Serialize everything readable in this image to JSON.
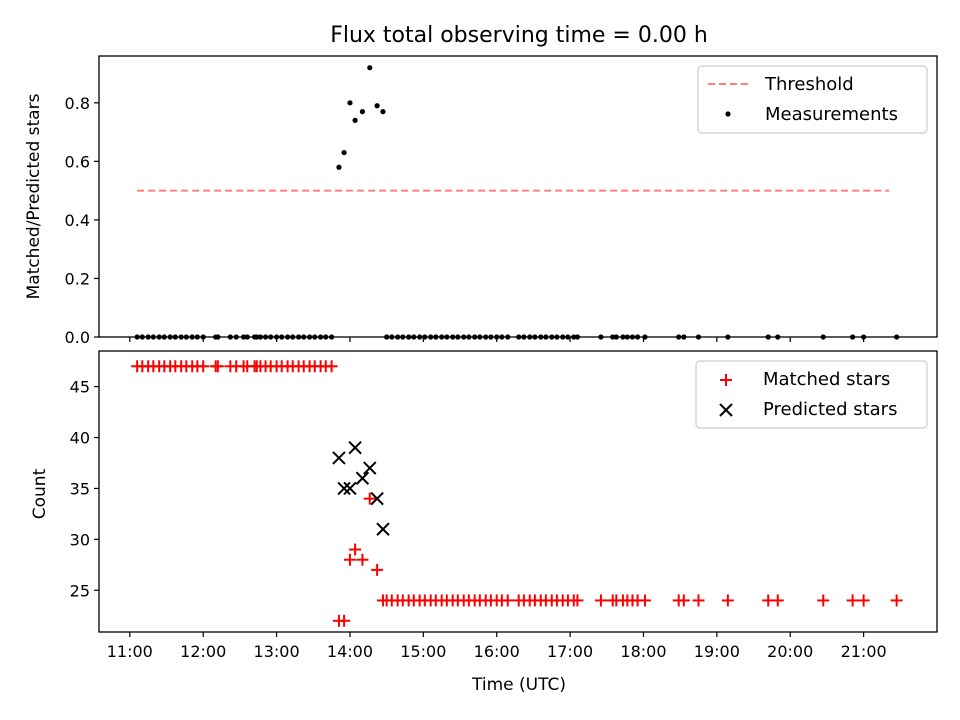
{
  "chart_data": [
    {
      "type": "scatter",
      "title": "Flux total observing time = 0.00 h",
      "xlabel": "",
      "ylabel": "Matched/Predicted stars",
      "xlim": [
        10.58,
        22.0
      ],
      "ylim": [
        0.0,
        0.96
      ],
      "yticks": [
        0.0,
        0.2,
        0.4,
        0.6,
        0.8
      ],
      "ytick_labels": [
        "0.0",
        "0.2",
        "0.4",
        "0.6",
        "0.8"
      ],
      "grid": false,
      "legend": {
        "placement": "top-right",
        "entries": [
          "Threshold",
          "Measurements"
        ]
      },
      "threshold": {
        "name": "Threshold",
        "value": 0.5,
        "x": [
          11.1,
          21.35
        ],
        "color": "#ff7f7f",
        "style": "dashed"
      },
      "series": [
        {
          "name": "Measurements",
          "color": "#000000",
          "marker": "dot",
          "x": [
            11.1,
            11.17,
            11.25,
            11.32,
            11.4,
            11.47,
            11.55,
            11.62,
            11.7,
            11.77,
            11.85,
            11.92,
            12.0,
            12.17,
            12.2,
            12.37,
            12.45,
            12.55,
            12.6,
            12.7,
            12.73,
            12.78,
            12.85,
            12.92,
            13.0,
            13.07,
            13.15,
            13.22,
            13.3,
            13.37,
            13.45,
            13.52,
            13.6,
            13.67,
            13.75,
            13.85,
            13.92,
            14.0,
            14.07,
            14.17,
            14.27,
            14.37,
            14.45,
            14.5,
            14.57,
            14.65,
            14.72,
            14.8,
            14.87,
            14.95,
            15.02,
            15.1,
            15.17,
            15.25,
            15.32,
            15.4,
            15.47,
            15.55,
            15.62,
            15.7,
            15.77,
            15.85,
            15.92,
            16.0,
            16.07,
            16.15,
            16.3,
            16.37,
            16.45,
            16.52,
            16.6,
            16.67,
            16.75,
            16.82,
            16.9,
            16.97,
            17.05,
            17.1,
            17.42,
            17.58,
            17.63,
            17.72,
            17.78,
            17.85,
            17.92,
            18.02,
            18.48,
            18.55,
            18.75,
            19.15,
            19.7,
            19.83,
            20.45,
            20.85,
            21.0,
            21.45
          ],
          "y": [
            0,
            0,
            0,
            0,
            0,
            0,
            0,
            0,
            0,
            0,
            0,
            0,
            0,
            0,
            0,
            0,
            0,
            0,
            0,
            0,
            0,
            0,
            0,
            0,
            0,
            0,
            0,
            0,
            0,
            0,
            0,
            0,
            0,
            0,
            0,
            0.58,
            0.63,
            0.8,
            0.74,
            0.77,
            0.92,
            0.79,
            0.77,
            0,
            0,
            0,
            0,
            0,
            0,
            0,
            0,
            0,
            0,
            0,
            0,
            0,
            0,
            0,
            0,
            0,
            0,
            0,
            0,
            0,
            0,
            0,
            0,
            0,
            0,
            0,
            0,
            0,
            0,
            0,
            0,
            0,
            0,
            0,
            0,
            0,
            0,
            0,
            0,
            0,
            0,
            0,
            0,
            0,
            0,
            0,
            0,
            0,
            0,
            0,
            0,
            0
          ]
        }
      ]
    },
    {
      "type": "scatter",
      "title": "",
      "xlabel": "Time (UTC)",
      "ylabel": "Count",
      "xlim": [
        10.58,
        22.0
      ],
      "ylim": [
        20.9,
        48.5
      ],
      "xticks": [
        11,
        12,
        13,
        14,
        15,
        16,
        17,
        18,
        19,
        20,
        21
      ],
      "xtick_labels": [
        "11:00",
        "12:00",
        "13:00",
        "14:00",
        "15:00",
        "16:00",
        "17:00",
        "18:00",
        "19:00",
        "20:00",
        "21:00"
      ],
      "yticks": [
        25,
        30,
        35,
        40,
        45
      ],
      "ytick_labels": [
        "25",
        "30",
        "35",
        "40",
        "45"
      ],
      "grid": false,
      "legend": {
        "placement": "top-right",
        "entries": [
          "Matched stars",
          "Predicted stars"
        ]
      },
      "series": [
        {
          "name": "Matched stars",
          "color": "#ff0000",
          "marker": "plus",
          "x": [
            11.1,
            11.17,
            11.25,
            11.32,
            11.4,
            11.47,
            11.55,
            11.62,
            11.7,
            11.77,
            11.85,
            11.92,
            12.0,
            12.17,
            12.2,
            12.37,
            12.45,
            12.55,
            12.6,
            12.7,
            12.73,
            12.78,
            12.85,
            12.92,
            13.0,
            13.07,
            13.15,
            13.22,
            13.3,
            13.37,
            13.45,
            13.52,
            13.6,
            13.67,
            13.75,
            13.85,
            13.92,
            14.0,
            14.07,
            14.17,
            14.27,
            14.37,
            14.45,
            14.5,
            14.57,
            14.65,
            14.72,
            14.8,
            14.87,
            14.95,
            15.02,
            15.1,
            15.17,
            15.25,
            15.32,
            15.4,
            15.47,
            15.55,
            15.62,
            15.7,
            15.77,
            15.85,
            15.92,
            16.0,
            16.07,
            16.15,
            16.3,
            16.37,
            16.45,
            16.52,
            16.6,
            16.67,
            16.75,
            16.82,
            16.9,
            16.97,
            17.05,
            17.1,
            17.42,
            17.58,
            17.63,
            17.72,
            17.78,
            17.85,
            17.92,
            18.02,
            18.48,
            18.55,
            18.75,
            19.15,
            19.7,
            19.83,
            20.45,
            20.85,
            21.0,
            21.45
          ],
          "y": [
            47,
            47,
            47,
            47,
            47,
            47,
            47,
            47,
            47,
            47,
            47,
            47,
            47,
            47,
            47,
            47,
            47,
            47,
            47,
            47,
            47,
            47,
            47,
            47,
            47,
            47,
            47,
            47,
            47,
            47,
            47,
            47,
            47,
            47,
            47,
            22,
            22,
            28,
            29,
            28,
            34,
            27,
            24,
            24,
            24,
            24,
            24,
            24,
            24,
            24,
            24,
            24,
            24,
            24,
            24,
            24,
            24,
            24,
            24,
            24,
            24,
            24,
            24,
            24,
            24,
            24,
            24,
            24,
            24,
            24,
            24,
            24,
            24,
            24,
            24,
            24,
            24,
            24,
            24,
            24,
            24,
            24,
            24,
            24,
            24,
            24,
            24,
            24,
            24,
            24,
            24,
            24,
            24,
            24,
            24,
            24
          ]
        },
        {
          "name": "Predicted stars",
          "color": "#000000",
          "marker": "x",
          "x": [
            13.85,
            13.92,
            14.0,
            14.07,
            14.17,
            14.27,
            14.37,
            14.45
          ],
          "y": [
            38,
            35,
            35,
            39,
            36,
            37,
            34,
            31
          ]
        }
      ]
    }
  ]
}
